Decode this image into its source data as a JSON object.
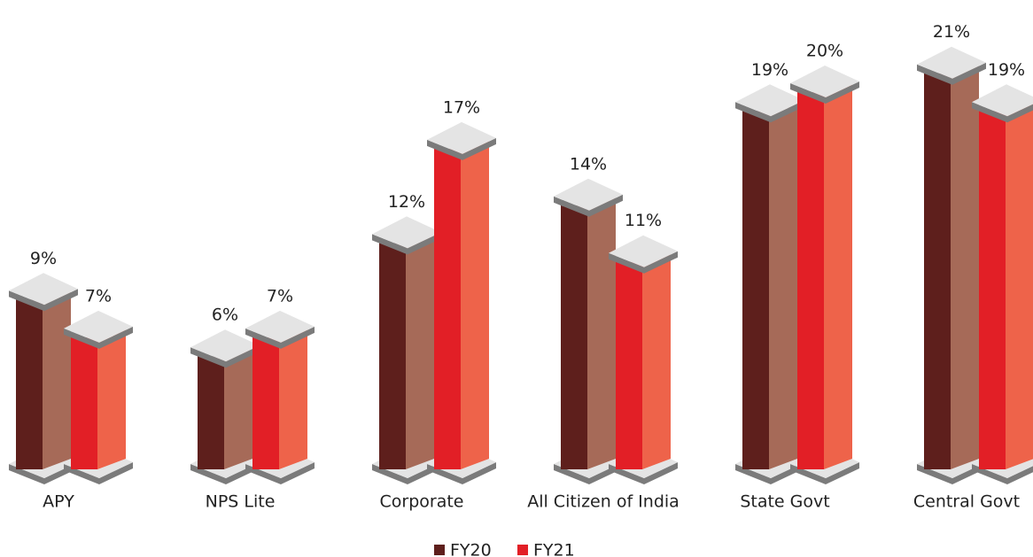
{
  "chart_data": {
    "type": "bar3d",
    "categories": [
      "APY",
      "NPS Lite",
      "Corporate",
      "All Citizen of India",
      "State Govt",
      "Central Govt"
    ],
    "series": [
      {
        "name": "FY20",
        "color": "#5e1f1c",
        "values": [
          9,
          6,
          12,
          14,
          19,
          21
        ],
        "value_labels": [
          "9%",
          "6%",
          "12%",
          "14%",
          "19%",
          "21%"
        ]
      },
      {
        "name": "FY21",
        "color": "#e21f26",
        "values": [
          7,
          7,
          17,
          11,
          20,
          19
        ],
        "value_labels": [
          "7%",
          "7%",
          "17%",
          "11%",
          "20%",
          "19%"
        ]
      }
    ],
    "legend": "bottom"
  }
}
